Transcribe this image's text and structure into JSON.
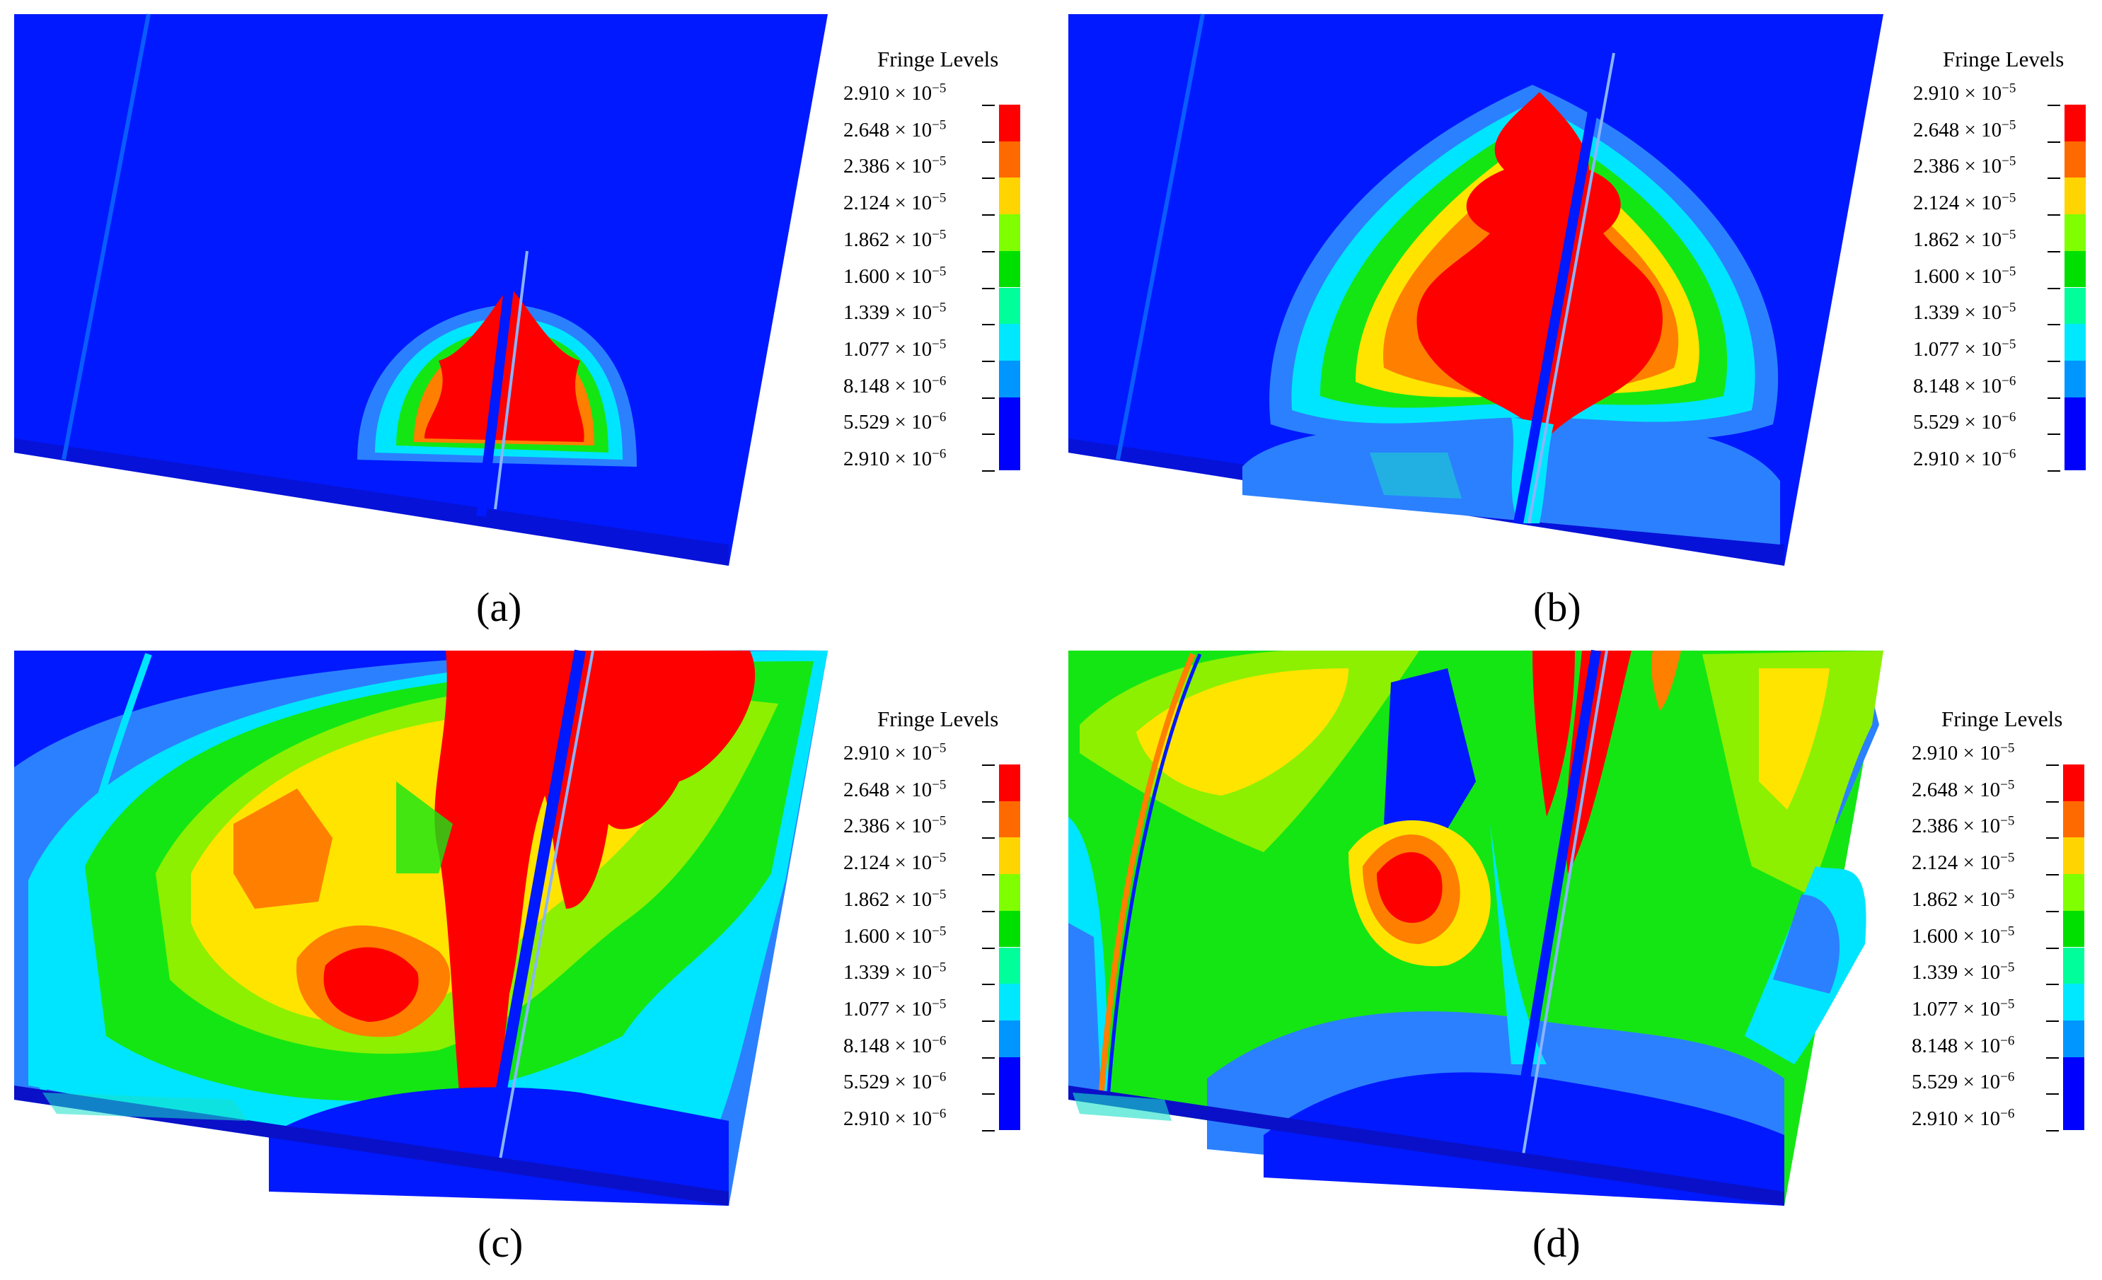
{
  "legend": {
    "title": "Fringe Levels",
    "levels": [
      {
        "m": "2.910",
        "e": "−5"
      },
      {
        "m": "2.648",
        "e": "−5"
      },
      {
        "m": "2.386",
        "e": "−5"
      },
      {
        "m": "2.124",
        "e": "−5"
      },
      {
        "m": "1.862",
        "e": "−5"
      },
      {
        "m": "1.600",
        "e": "−5"
      },
      {
        "m": "1.339",
        "e": "−5"
      },
      {
        "m": "1.077",
        "e": "−5"
      },
      {
        "m": "8.148",
        "e": "−6"
      },
      {
        "m": "5.529",
        "e": "−6"
      },
      {
        "m": "2.910",
        "e": "−6"
      }
    ],
    "colors": [
      "#ff0000",
      "#ff6a00",
      "#ffd400",
      "#7fff00",
      "#00e000",
      "#00ff9a",
      "#00e8ff",
      "#0096ff",
      "#0000ff",
      "#0000ff"
    ]
  },
  "palette": {
    "blue": "#0019ff",
    "deep": "#0f1cff",
    "lightblue": "#2b80ff",
    "cyan": "#00e5ff",
    "teal": "#19e0c8",
    "green": "#14e614",
    "lime": "#8cf000",
    "yellow": "#ffe400",
    "orange": "#ff7f00",
    "red": "#ff0000",
    "darkbase": "#0a10c8"
  },
  "panels": [
    {
      "id": "a",
      "caption": "(a)"
    },
    {
      "id": "b",
      "caption": "(b)"
    },
    {
      "id": "c",
      "caption": "(c)"
    },
    {
      "id": "d",
      "caption": "(d)"
    }
  ]
}
